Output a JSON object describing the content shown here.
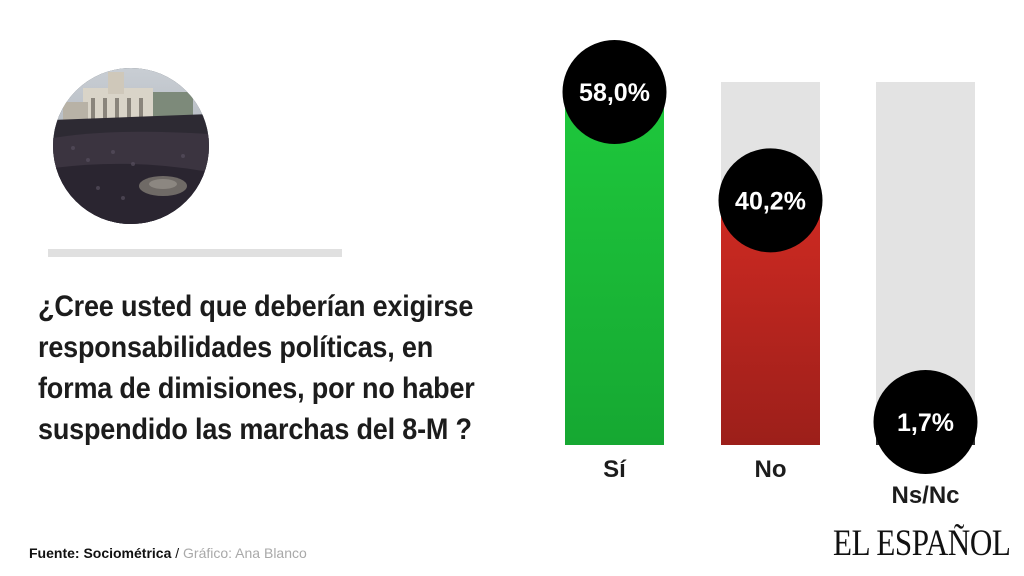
{
  "question": "¿Cree usted que deberían exigirse responsabilidades políticas, en forma de dimisiones, por no haber suspendido las marchas del 8-M ?",
  "footer": {
    "source": "Fuente: Sociométrica",
    "separator": " / ",
    "credit": "Gráfico: Ana Blanco"
  },
  "brand": "EL ESPAÑOL",
  "photo_icon": "crowd-photo",
  "colors": {
    "si": "#1db83a",
    "no": "#b5251d",
    "nsnc": "#2a2a2a",
    "track": "#e3e3e3",
    "bubble": "#000000"
  },
  "chart_data": {
    "type": "bar",
    "title": "",
    "categories": [
      "Sí",
      "No",
      "Ns/Nc"
    ],
    "values": [
      58.0,
      40.2,
      1.7
    ],
    "value_labels": [
      "58,0%",
      "40,2%",
      "1,7%"
    ],
    "ylim": [
      0,
      58.0
    ],
    "xlabel": "",
    "ylabel": "",
    "grid": false
  }
}
